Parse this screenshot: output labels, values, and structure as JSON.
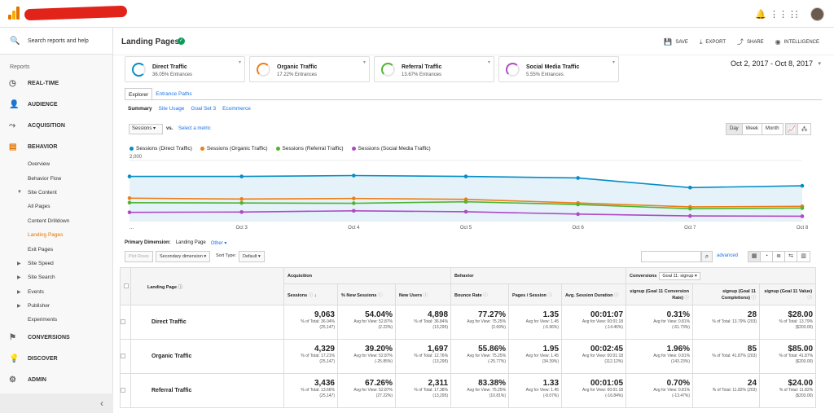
{
  "topbar": {
    "icons": [
      "bell-icon",
      "apps-grid-icon",
      "more-vert-icon"
    ]
  },
  "sidebar": {
    "search_placeholder": "Search reports and help",
    "reports_label": "Reports",
    "main_items": [
      {
        "label": "REAL-TIME",
        "icon": "clock-icon"
      },
      {
        "label": "AUDIENCE",
        "icon": "person-icon"
      },
      {
        "label": "ACQUISITION",
        "icon": "acquisition-icon"
      },
      {
        "label": "BEHAVIOR",
        "icon": "behavior-icon"
      }
    ],
    "behavior_items": [
      {
        "label": "Overview",
        "arrow": ""
      },
      {
        "label": "Behavior Flow",
        "arrow": ""
      },
      {
        "label": "Site Content",
        "arrow": "▼"
      },
      {
        "label": "All Pages",
        "arrow": ""
      },
      {
        "label": "Content Drilldown",
        "arrow": ""
      },
      {
        "label": "Landing Pages",
        "arrow": ""
      },
      {
        "label": "Exit Pages",
        "arrow": ""
      },
      {
        "label": "Site Speed",
        "arrow": "▶"
      },
      {
        "label": "Site Search",
        "arrow": "▶"
      },
      {
        "label": "Events",
        "arrow": "▶"
      },
      {
        "label": "Publisher",
        "arrow": "▶"
      },
      {
        "label": "Experiments",
        "arrow": ""
      }
    ],
    "bottom_items": [
      {
        "label": "CONVERSIONS",
        "icon": "flag-icon"
      },
      {
        "label": "DISCOVER",
        "icon": "lightbulb-icon"
      },
      {
        "label": "ADMIN",
        "icon": "gear-icon"
      }
    ],
    "collapse_glyph": "‹"
  },
  "header": {
    "title": "Landing Pages",
    "actions": [
      {
        "label": "SAVE",
        "icon": "save-icon"
      },
      {
        "label": "EXPORT",
        "icon": "export-icon"
      },
      {
        "label": "SHARE",
        "icon": "share-icon"
      },
      {
        "label": "INTELLIGENCE",
        "icon": "intelligence-icon"
      }
    ]
  },
  "segments": [
    {
      "name": "Direct Traffic",
      "pct": "36.05% Entrances",
      "color": "#058dc7"
    },
    {
      "name": "Organic Traffic",
      "pct": "17.22% Entrances",
      "color": "#ed7e17"
    },
    {
      "name": "Referral Traffic",
      "pct": "13.67% Entrances",
      "color": "#50b432"
    },
    {
      "name": "Social Media Traffic",
      "pct": "5.55% Entrances",
      "color": "#af49c5"
    }
  ],
  "date_range": "Oct 2, 2017 - Oct 8, 2017",
  "tabs": {
    "explorer": "Explorer",
    "entrance_paths": "Entrance Paths"
  },
  "subtabs": [
    "Summary",
    "Site Usage",
    "Goal Set 3",
    "Ecommerce"
  ],
  "metric_select": {
    "value": "Sessions",
    "vs": "vs.",
    "select_metric": "Select a metric"
  },
  "period": [
    "Day",
    "Week",
    "Month"
  ],
  "chart_data": {
    "type": "line",
    "x": [
      "...",
      "Oct 3",
      "Oct 4",
      "Oct 5",
      "Oct 6",
      "Oct 7",
      "Oct 8"
    ],
    "ylim": [
      0,
      2000
    ],
    "yticks": [
      "2,000",
      "1,000"
    ],
    "series": [
      {
        "name": "Sessions (Direct Traffic)",
        "color": "#058dc7",
        "values": [
          1470,
          1470,
          1500,
          1470,
          1420,
          1100,
          1160
        ]
      },
      {
        "name": "Sessions (Organic Traffic)",
        "color": "#ed7e17",
        "values": [
          750,
          720,
          740,
          710,
          590,
          460,
          480
        ]
      },
      {
        "name": "Sessions (Referral Traffic)",
        "color": "#50b432",
        "values": [
          600,
          590,
          580,
          630,
          540,
          400,
          420
        ]
      },
      {
        "name": "Sessions (Social Media Traffic)",
        "color": "#af49c5",
        "values": [
          280,
          290,
          330,
          300,
          220,
          160,
          150
        ]
      }
    ]
  },
  "primary_dimension": {
    "label": "Primary Dimension:",
    "value": "Landing Page",
    "other": "Other"
  },
  "toolbar": {
    "plot_rows": "Plot Rows",
    "secondary_dimension": "Secondary dimension",
    "sort_type_label": "Sort Type:",
    "sort_type": "Default",
    "advanced": "advanced"
  },
  "table": {
    "group_acq": "Acquisition",
    "group_beh": "Behavior",
    "group_conv": "Conversions",
    "goal_select": "Goal 11: signup",
    "col_landing": "Landing Page",
    "columns": [
      "Sessions",
      "% New Sessions",
      "New Users",
      "Bounce Rate",
      "Pages / Session",
      "Avg. Session Duration",
      "signup (Goal 11 Conversion Rate)",
      "signup (Goal 11 Completions)",
      "signup (Goal 11 Value)"
    ],
    "rows": [
      {
        "label": "Direct Traffic",
        "cells": [
          {
            "v": "9,063",
            "s1": "% of Total: 36.04%",
            "s2": "(25,147)"
          },
          {
            "v": "54.04%",
            "s1": "Avg for View: 52.87%",
            "s2": "(2.22%)"
          },
          {
            "v": "4,898",
            "s1": "% of Total: 36.84%",
            "s2": "(13,295)"
          },
          {
            "v": "77.27%",
            "s1": "Avg for View: 75.25%",
            "s2": "(2.69%)"
          },
          {
            "v": "1.35",
            "s1": "Avg for View: 1.45",
            "s2": "(-6.96%)"
          },
          {
            "v": "00:01:07",
            "s1": "Avg for View: 00:01:18",
            "s2": "(-14.46%)"
          },
          {
            "v": "0.31%",
            "s1": "Avg for View: 0.81%",
            "s2": "(-61.73%)"
          },
          {
            "v": "28",
            "s1": "% of Total: 13.79% (203)",
            "s2": ""
          },
          {
            "v": "$28.00",
            "s1": "% of Total: 13.79%",
            "s2": "($203.00)"
          }
        ]
      },
      {
        "label": "Organic Traffic",
        "cells": [
          {
            "v": "4,329",
            "s1": "% of Total: 17.21%",
            "s2": "(25,147)"
          },
          {
            "v": "39.20%",
            "s1": "Avg for View: 52.87%",
            "s2": "(-25.85%)"
          },
          {
            "v": "1,697",
            "s1": "% of Total: 12.76%",
            "s2": "(13,295)"
          },
          {
            "v": "55.86%",
            "s1": "Avg for View: 75.25%",
            "s2": "(-25.77%)"
          },
          {
            "v": "1.95",
            "s1": "Avg for View: 1.45",
            "s2": "(34.39%)"
          },
          {
            "v": "00:02:45",
            "s1": "Avg for View: 00:01:18",
            "s2": "(112.12%)"
          },
          {
            "v": "1.96%",
            "s1": "Avg for View: 0.81%",
            "s2": "(143.23%)"
          },
          {
            "v": "85",
            "s1": "% of Total: 41.87% (203)",
            "s2": ""
          },
          {
            "v": "$85.00",
            "s1": "% of Total: 41.87%",
            "s2": "($203.00)"
          }
        ]
      },
      {
        "label": "Referral Traffic",
        "cells": [
          {
            "v": "3,436",
            "s1": "% of Total: 13.66%",
            "s2": "(25,147)"
          },
          {
            "v": "67.26%",
            "s1": "Avg for View: 52.87%",
            "s2": "(27.22%)"
          },
          {
            "v": "2,311",
            "s1": "% of Total: 17.38%",
            "s2": "(13,295)"
          },
          {
            "v": "83.38%",
            "s1": "Avg for View: 75.25%",
            "s2": "(10.81%)"
          },
          {
            "v": "1.33",
            "s1": "Avg for View: 1.45",
            "s2": "(-8.07%)"
          },
          {
            "v": "00:01:05",
            "s1": "Avg for View: 00:01:18",
            "s2": "(-16.84%)"
          },
          {
            "v": "0.70%",
            "s1": "Avg for View: 0.81%",
            "s2": "(-13.47%)"
          },
          {
            "v": "24",
            "s1": "% of Total: 11.82% (203)",
            "s2": ""
          },
          {
            "v": "$24.00",
            "s1": "% of Total: 11.82%",
            "s2": "($203.00)"
          }
        ]
      }
    ]
  }
}
